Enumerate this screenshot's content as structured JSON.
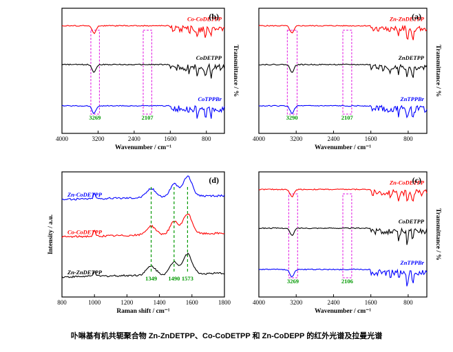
{
  "caption": "卟啉基有机共轭聚合物 Zn-ZnDETPP、Co-CoDETPP 和 Zn-CoDEPP 的红外光谱及拉曼光谱",
  "chart_data": [
    {
      "type": "line",
      "panel_label": "(a)",
      "xlabel": "Wavenumber / cm⁻¹",
      "ylabel": "Transmittance / %",
      "xlim": [
        4000,
        400
      ],
      "x_ticks": [
        "4000",
        "3200",
        "2400",
        "1600",
        "800"
      ],
      "series": [
        {
          "name": "Zn-ZnDETPP",
          "color": "#ff0000",
          "offset": 0.86
        },
        {
          "name": "ZnDETPP",
          "color": "#000000",
          "offset": 0.55
        },
        {
          "name": "ZnTPPBr",
          "color": "#0000ff",
          "offset": 0.22
        }
      ],
      "annotations": [
        {
          "text": "3290",
          "x": 3290
        },
        {
          "text": "2107",
          "x": 2107
        }
      ],
      "highlight_bands": [
        [
          3390,
          3180
        ],
        [
          2200,
          2010
        ]
      ]
    },
    {
      "type": "line",
      "panel_label": "(b)",
      "xlabel": "Wavenumber / cm⁻¹",
      "ylabel": "Transmittance / %",
      "xlim": [
        4000,
        400
      ],
      "x_ticks": [
        "4000",
        "3200",
        "2400",
        "1600",
        "800"
      ],
      "series": [
        {
          "name": "Co-CoDETPP",
          "color": "#ff0000",
          "offset": 0.86
        },
        {
          "name": "CoDETPP",
          "color": "#000000",
          "offset": 0.55
        },
        {
          "name": "CoTPPBr",
          "color": "#0000ff",
          "offset": 0.22
        }
      ],
      "annotations": [
        {
          "text": "3269",
          "x": 3269
        },
        {
          "text": "2107",
          "x": 2107
        }
      ],
      "highlight_bands": [
        [
          3360,
          3170
        ],
        [
          2200,
          2010
        ]
      ]
    },
    {
      "type": "line",
      "panel_label": "(c)",
      "xlabel": "Wavenumber / cm⁻¹",
      "ylabel": "Transmittance / %",
      "xlim": [
        4000,
        400
      ],
      "x_ticks": [
        "4000",
        "3200",
        "2400",
        "1600",
        "800"
      ],
      "series": [
        {
          "name": "Zn-CoDETPP",
          "color": "#ff0000",
          "offset": 0.86
        },
        {
          "name": "CoDETPP",
          "color": "#000000",
          "offset": 0.55
        },
        {
          "name": "ZnTPPBr",
          "color": "#0000ff",
          "offset": 0.22
        }
      ],
      "annotations": [
        {
          "text": "3269",
          "x": 3269
        },
        {
          "text": "2106",
          "x": 2106
        }
      ],
      "highlight_bands": [
        [
          3360,
          3170
        ],
        [
          2200,
          2010
        ]
      ]
    },
    {
      "type": "line",
      "panel_label": "(d)",
      "xlabel": "Raman shift / cm⁻¹",
      "ylabel": "Intensity / a.u.",
      "xlim": [
        800,
        1800
      ],
      "x_ticks": [
        "800",
        "1000",
        "1200",
        "1400",
        "1600",
        "1800"
      ],
      "series": [
        {
          "name": "Zn-CoDETPP",
          "color": "#0000ff",
          "offset": 0.78
        },
        {
          "name": "Co-CoDETPP",
          "color": "#ff0000",
          "offset": 0.48
        },
        {
          "name": "Zn-ZnDETPP",
          "color": "#000000",
          "offset": 0.16
        }
      ],
      "annotations": [
        {
          "text": "1349",
          "x": 1349
        },
        {
          "text": "1490",
          "x": 1490
        },
        {
          "text": "1573",
          "x": 1573
        }
      ]
    }
  ]
}
